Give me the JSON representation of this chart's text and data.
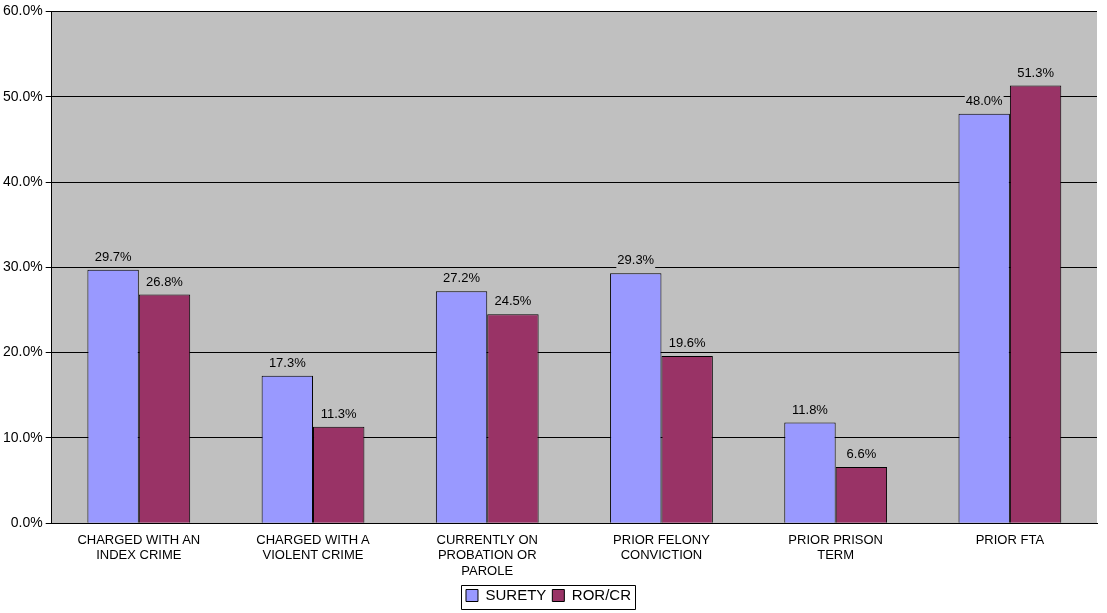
{
  "chart_data": {
    "type": "bar",
    "categories": [
      "CHARGED WITH AN INDEX CRIME",
      "CHARGED WITH A VIOLENT CRIME",
      "CURRENTLY ON PROBATION OR PAROLE",
      "PRIOR FELONY CONVICTION",
      "PRIOR PRISON TERM",
      "PRIOR FTA"
    ],
    "series": [
      {
        "name": "SURETY",
        "color": "#9999ff",
        "values": [
          29.7,
          17.3,
          27.2,
          29.3,
          11.8,
          48.0
        ],
        "value_labels": [
          "29.7%",
          "17.3%",
          "27.2%",
          "29.3%",
          "11.8%",
          "48.0%"
        ]
      },
      {
        "name": "ROR/CR",
        "color": "#993366",
        "values": [
          26.8,
          11.3,
          24.5,
          19.6,
          6.6,
          51.3
        ],
        "value_labels": [
          "26.8%",
          "11.3%",
          "24.5%",
          "19.6%",
          "6.6%",
          "51.3%"
        ]
      }
    ],
    "ylim": [
      0,
      60
    ],
    "yticks": [
      {
        "value": 0,
        "label": "0.0%"
      },
      {
        "value": 10,
        "label": "10.0%"
      },
      {
        "value": 20,
        "label": "20.0%"
      },
      {
        "value": 30,
        "label": "30.0%"
      },
      {
        "value": 40,
        "label": "40.0%"
      },
      {
        "value": 50,
        "label": "50.0%"
      },
      {
        "value": 60,
        "label": "60.0%"
      }
    ],
    "grid": "y",
    "legend": "bottom"
  }
}
